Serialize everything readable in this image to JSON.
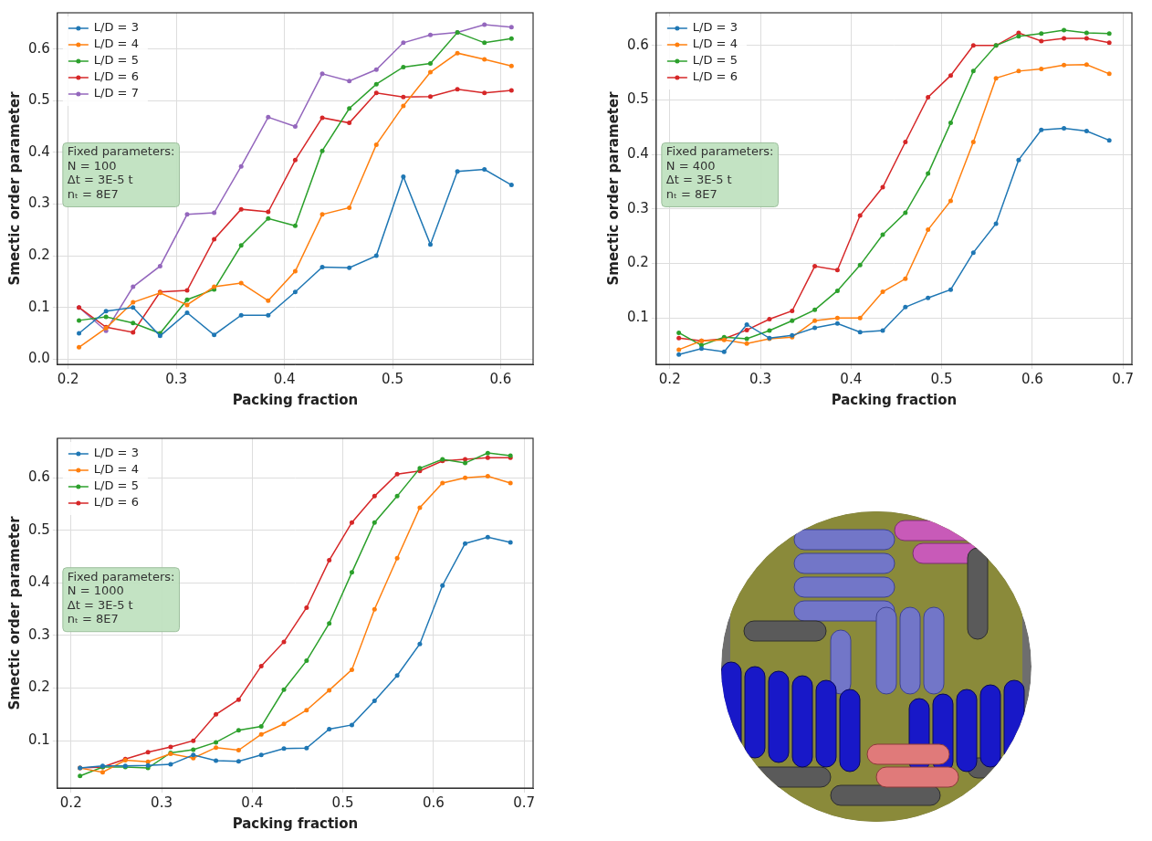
{
  "chart_data": [
    {
      "type": "line",
      "x_label": "Packing fraction",
      "y_label": "Smectic order parameter",
      "annotations": [
        "Fixed parameters:",
        "N = 100",
        "Δt = 3E-5 t",
        "nₜ = 8E7"
      ],
      "x": [
        0.21,
        0.235,
        0.26,
        0.285,
        0.31,
        0.335,
        0.36,
        0.385,
        0.41,
        0.435,
        0.46,
        0.485,
        0.51,
        0.535,
        0.56,
        0.585,
        0.61
      ],
      "series": [
        {
          "name": "L/D = 3",
          "color": "#1f77b4",
          "values": [
            0.05,
            0.093,
            0.1,
            0.045,
            0.09,
            0.047,
            0.085,
            0.085,
            0.13,
            0.178,
            0.177,
            0.2,
            0.353,
            0.222,
            0.363,
            0.367,
            0.337
          ]
        },
        {
          "name": "L/D = 4",
          "color": "#ff7f0e",
          "values": [
            0.023,
            0.06,
            0.11,
            0.128,
            0.105,
            0.14,
            0.147,
            0.113,
            0.17,
            0.28,
            0.293,
            0.415,
            0.49,
            0.555,
            0.592,
            0.58,
            0.567
          ]
        },
        {
          "name": "L/D = 5",
          "color": "#2ca02c",
          "values": [
            0.075,
            0.082,
            0.07,
            0.05,
            0.115,
            0.135,
            0.22,
            0.272,
            0.258,
            0.403,
            0.485,
            0.532,
            0.565,
            0.572,
            0.632,
            0.612,
            0.62
          ]
        },
        {
          "name": "L/D = 6",
          "color": "#d62728",
          "values": [
            0.1,
            0.062,
            0.052,
            0.13,
            0.133,
            0.232,
            0.29,
            0.285,
            0.385,
            0.467,
            0.457,
            0.515,
            0.507,
            0.508,
            0.522,
            0.515,
            0.52
          ]
        },
        {
          "name": "L/D = 7",
          "color": "#9467bd",
          "values": [
            0.1,
            0.055,
            0.14,
            0.18,
            0.28,
            0.283,
            0.373,
            0.468,
            0.45,
            0.552,
            0.538,
            0.56,
            0.612,
            0.627,
            0.632,
            0.647,
            0.642
          ]
        }
      ],
      "xlim": [
        0.19,
        0.63
      ],
      "xticks": [
        0.2,
        0.3,
        0.4,
        0.5,
        0.6
      ],
      "ylim": [
        -0.01,
        0.67
      ],
      "yticks": [
        {
          "value": 0,
          "label": "0.0"
        },
        0.1,
        0.2,
        0.3,
        0.4,
        0.5,
        0.6
      ],
      "grid": true,
      "legend": "upper left",
      "marker": "o",
      "line_style": "solid"
    },
    {
      "type": "line",
      "x_label": "Packing fraction",
      "y_label": "Smectic order parameter",
      "annotations": [
        "Fixed parameters:",
        "N = 400",
        "Δt = 3E-5 t",
        "nₜ = 8E7"
      ],
      "x": [
        0.21,
        0.235,
        0.26,
        0.285,
        0.31,
        0.335,
        0.36,
        0.385,
        0.41,
        0.435,
        0.46,
        0.485,
        0.51,
        0.535,
        0.56,
        0.585,
        0.61,
        0.635,
        0.66,
        0.685
      ],
      "series": [
        {
          "name": "L/D = 3",
          "color": "#1f77b4",
          "values": [
            0.033,
            0.044,
            0.038,
            0.088,
            0.063,
            0.068,
            0.082,
            0.09,
            0.074,
            0.077,
            0.12,
            0.137,
            0.152,
            0.22,
            0.273,
            0.39,
            0.445,
            0.448,
            0.443,
            0.426
          ]
        },
        {
          "name": "L/D = 4",
          "color": "#ff7f0e",
          "values": [
            0.042,
            0.058,
            0.06,
            0.053,
            0.062,
            0.065,
            0.095,
            0.1,
            0.1,
            0.148,
            0.172,
            0.262,
            0.315,
            0.423,
            0.54,
            0.553,
            0.557,
            0.564,
            0.565,
            0.548
          ]
        },
        {
          "name": "L/D = 5",
          "color": "#2ca02c",
          "values": [
            0.073,
            0.05,
            0.065,
            0.062,
            0.077,
            0.095,
            0.115,
            0.15,
            0.197,
            0.253,
            0.293,
            0.365,
            0.458,
            0.553,
            0.6,
            0.617,
            0.622,
            0.628,
            0.623,
            0.622
          ]
        },
        {
          "name": "L/D = 6",
          "color": "#d62728",
          "values": [
            0.063,
            0.058,
            0.062,
            0.078,
            0.098,
            0.113,
            0.195,
            0.188,
            0.288,
            0.34,
            0.423,
            0.505,
            0.545,
            0.6,
            0.6,
            0.623,
            0.608,
            0.613,
            0.613,
            0.605
          ]
        }
      ],
      "xlim": [
        0.185,
        0.71
      ],
      "xticks": [
        0.2,
        0.3,
        0.4,
        0.5,
        0.6,
        0.7
      ],
      "ylim": [
        0.015,
        0.66
      ],
      "yticks": [
        0.1,
        0.2,
        0.3,
        0.4,
        0.5,
        0.6
      ],
      "grid": true,
      "legend": "upper left",
      "marker": "o",
      "line_style": "solid"
    },
    {
      "type": "line",
      "x_label": "Packing fraction",
      "y_label": "Smectic order parameter",
      "annotations": [
        "Fixed parameters:",
        "N = 1000",
        "Δt = 3E-5 t",
        "nₜ = 8E7"
      ],
      "x": [
        0.21,
        0.235,
        0.26,
        0.285,
        0.31,
        0.335,
        0.36,
        0.385,
        0.41,
        0.435,
        0.46,
        0.485,
        0.51,
        0.535,
        0.56,
        0.585,
        0.61,
        0.635,
        0.66,
        0.685
      ],
      "series": [
        {
          "name": "L/D = 3",
          "color": "#1f77b4",
          "values": [
            0.048,
            0.052,
            0.052,
            0.053,
            0.055,
            0.073,
            0.062,
            0.061,
            0.073,
            0.085,
            0.086,
            0.122,
            0.13,
            0.176,
            0.224,
            0.284,
            0.395,
            0.475,
            0.487,
            0.477
          ]
        },
        {
          "name": "L/D = 4",
          "color": "#ff7f0e",
          "values": [
            0.048,
            0.04,
            0.063,
            0.06,
            0.075,
            0.067,
            0.087,
            0.082,
            0.112,
            0.132,
            0.158,
            0.196,
            0.235,
            0.35,
            0.447,
            0.543,
            0.59,
            0.6,
            0.603,
            0.59
          ]
        },
        {
          "name": "L/D = 5",
          "color": "#2ca02c",
          "values": [
            0.033,
            0.05,
            0.05,
            0.048,
            0.077,
            0.083,
            0.097,
            0.12,
            0.127,
            0.197,
            0.252,
            0.323,
            0.42,
            0.515,
            0.565,
            0.618,
            0.635,
            0.628,
            0.647,
            0.642
          ]
        },
        {
          "name": "L/D = 6",
          "color": "#d62728",
          "values": [
            0.048,
            0.05,
            0.065,
            0.078,
            0.088,
            0.1,
            0.15,
            0.178,
            0.242,
            0.288,
            0.353,
            0.443,
            0.515,
            0.565,
            0.607,
            0.613,
            0.632,
            0.635,
            0.638,
            0.638
          ]
        }
      ],
      "xlim": [
        0.185,
        0.71
      ],
      "xticks": [
        0.2,
        0.3,
        0.4,
        0.5,
        0.6,
        0.7
      ],
      "ylim": [
        0.01,
        0.675
      ],
      "yticks": [
        0.1,
        0.2,
        0.3,
        0.4,
        0.5,
        0.6
      ],
      "grid": true,
      "legend": "upper left",
      "marker": "o",
      "line_style": "solid"
    }
  ]
}
